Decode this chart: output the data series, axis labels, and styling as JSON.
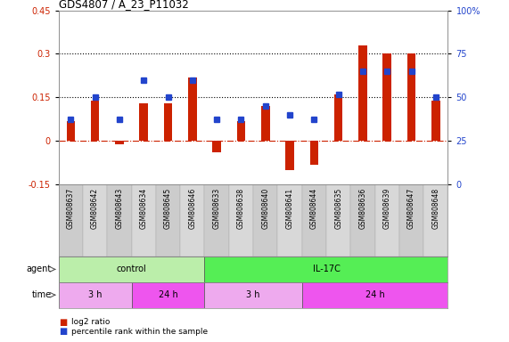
{
  "title": "GDS4807 / A_23_P11032",
  "samples": [
    "GSM808637",
    "GSM808642",
    "GSM808643",
    "GSM808634",
    "GSM808645",
    "GSM808646",
    "GSM808633",
    "GSM808638",
    "GSM808640",
    "GSM808641",
    "GSM808644",
    "GSM808635",
    "GSM808636",
    "GSM808639",
    "GSM808647",
    "GSM808648"
  ],
  "log2_ratio": [
    0.07,
    0.14,
    -0.01,
    0.13,
    0.13,
    0.22,
    -0.04,
    0.07,
    0.12,
    -0.1,
    -0.08,
    0.16,
    0.33,
    0.3,
    0.3,
    0.14
  ],
  "percentile": [
    0.375,
    0.5,
    0.375,
    0.6,
    0.5,
    0.6,
    0.375,
    0.375,
    0.45,
    0.4,
    0.375,
    0.52,
    0.65,
    0.65,
    0.65,
    0.5
  ],
  "bar_color": "#cc2200",
  "dot_color": "#2244cc",
  "zero_line_color": "#cc2200",
  "hline_color": "#000000",
  "ylim_left": [
    -0.15,
    0.45
  ],
  "ylim_right": [
    0.0,
    1.0
  ],
  "yticks_left": [
    -0.15,
    0.0,
    0.15,
    0.3,
    0.45
  ],
  "ytick_labels_left": [
    "-0.15",
    "0",
    "0.15",
    "0.3",
    "0.45"
  ],
  "yticks_right": [
    0.0,
    0.25,
    0.5,
    0.75,
    1.0
  ],
  "ytick_labels_right": [
    "0",
    "25",
    "50",
    "75",
    "100%"
  ],
  "hlines": [
    0.3,
    0.15
  ],
  "agent_groups": [
    {
      "label": "control",
      "start": 0,
      "end": 6,
      "color": "#bbeeaa"
    },
    {
      "label": "IL-17C",
      "start": 6,
      "end": 16,
      "color": "#55ee55"
    }
  ],
  "time_groups": [
    {
      "label": "3 h",
      "start": 0,
      "end": 3,
      "color": "#eeaaee"
    },
    {
      "label": "24 h",
      "start": 3,
      "end": 6,
      "color": "#ee55ee"
    },
    {
      "label": "3 h",
      "start": 6,
      "end": 10,
      "color": "#eeaaee"
    },
    {
      "label": "24 h",
      "start": 10,
      "end": 16,
      "color": "#ee55ee"
    }
  ],
  "legend_bar_label": "log2 ratio",
  "legend_dot_label": "percentile rank within the sample",
  "agent_label": "agent",
  "time_label": "time",
  "bar_width": 0.35,
  "bg_color": "#f0f0f0",
  "sample_label_bg": "#cccccc"
}
